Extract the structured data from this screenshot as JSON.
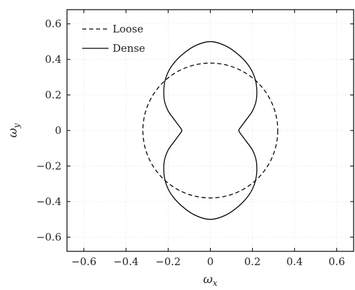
{
  "chart_data": {
    "type": "line",
    "xlabel": "ω",
    "xlabel_sub": "x",
    "ylabel": "ω",
    "ylabel_sub": "y",
    "xlim": [
      -0.68,
      0.68
    ],
    "ylim": [
      -0.68,
      0.68
    ],
    "x_ticks": [
      -0.6,
      -0.4,
      -0.2,
      0,
      0.2,
      0.4,
      0.6
    ],
    "y_ticks": [
      -0.6,
      -0.4,
      -0.2,
      0,
      0.2,
      0.4,
      0.6
    ],
    "x_tick_labels": [
      "−0.6",
      "−0.4",
      "−0.2",
      "0",
      "0.2",
      "0.4",
      "0.6"
    ],
    "y_tick_labels": [
      "−0.6",
      "−0.4",
      "−0.2",
      "0",
      "0.2",
      "0.4",
      "0.6"
    ],
    "grid": true,
    "legend_position": "top-left",
    "aspect": "equal",
    "series": [
      {
        "name": "Loose",
        "style": "dashed",
        "color": "#000000",
        "shape": "circle",
        "radius": 0.32,
        "points": [
          [
            0.32,
            0
          ],
          [
            0.226,
            0.226
          ],
          [
            0,
            0.32
          ],
          [
            -0.226,
            0.226
          ],
          [
            -0.32,
            0
          ],
          [
            -0.226,
            -0.226
          ],
          [
            0,
            -0.32
          ],
          [
            0.226,
            -0.226
          ]
        ]
      },
      {
        "name": "Dense",
        "style": "solid",
        "color": "#000000",
        "shape": "peanut",
        "points": [
          [
            0.135,
            0.0
          ],
          [
            0.145,
            0.02
          ],
          [
            0.17,
            0.06
          ],
          [
            0.2,
            0.11
          ],
          [
            0.218,
            0.17
          ],
          [
            0.22,
            0.24
          ],
          [
            0.21,
            0.3
          ],
          [
            0.185,
            0.36
          ],
          [
            0.14,
            0.42
          ],
          [
            0.075,
            0.475
          ],
          [
            0.0,
            0.5
          ],
          [
            -0.075,
            0.475
          ],
          [
            -0.14,
            0.42
          ],
          [
            -0.185,
            0.36
          ],
          [
            -0.21,
            0.3
          ],
          [
            -0.22,
            0.24
          ],
          [
            -0.218,
            0.17
          ],
          [
            -0.2,
            0.11
          ],
          [
            -0.17,
            0.06
          ],
          [
            -0.145,
            0.02
          ],
          [
            -0.135,
            0.0
          ],
          [
            -0.145,
            -0.02
          ],
          [
            -0.17,
            -0.06
          ],
          [
            -0.2,
            -0.11
          ],
          [
            -0.218,
            -0.17
          ],
          [
            -0.22,
            -0.24
          ],
          [
            -0.21,
            -0.3
          ],
          [
            -0.185,
            -0.36
          ],
          [
            -0.14,
            -0.42
          ],
          [
            -0.075,
            -0.475
          ],
          [
            0.0,
            -0.5
          ],
          [
            0.075,
            -0.475
          ],
          [
            0.14,
            -0.42
          ],
          [
            0.185,
            -0.36
          ],
          [
            0.21,
            -0.3
          ],
          [
            0.22,
            -0.24
          ],
          [
            0.218,
            -0.17
          ],
          [
            0.2,
            -0.11
          ],
          [
            0.17,
            -0.06
          ],
          [
            0.145,
            -0.02
          ],
          [
            0.135,
            0.0
          ]
        ]
      }
    ]
  }
}
